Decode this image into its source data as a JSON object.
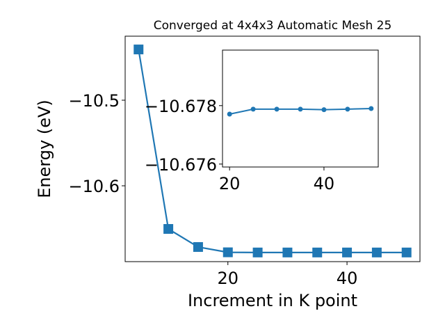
{
  "chart_data": [
    {
      "type": "line",
      "title": "Converged at 4x4x3 Automatic Mesh 25",
      "x_label": "Increment in K point",
      "y_label": "Energy (eV)",
      "x": [
        5,
        10,
        15,
        20,
        25,
        30,
        35,
        40,
        45,
        50
      ],
      "series": [
        {
          "color": "#1f77b4",
          "marker": "square",
          "values": [
            -10.4407,
            -10.6504,
            -10.6715,
            -10.6777,
            -10.6779,
            -10.6779,
            -10.6779,
            -10.6779,
            -10.6779,
            -10.6779
          ]
        }
      ],
      "xlim": [
        2.75,
        52.25
      ],
      "ylim": [
        -10.6886,
        -10.4252
      ],
      "xticks": [
        20,
        40
      ],
      "yticks": [
        {
          "value": -10.5,
          "label": "−10.5"
        },
        {
          "value": -10.6,
          "label": "−10.6"
        }
      ]
    },
    {
      "type": "line",
      "x": [
        20,
        25,
        30,
        35,
        40,
        45,
        50
      ],
      "series": [
        {
          "color": "#1f77b4",
          "marker": "circle",
          "values": [
            -10.67771,
            -10.67788,
            -10.67788,
            -10.67788,
            -10.67786,
            -10.67788,
            -10.6779
          ]
        }
      ],
      "xlim": [
        18.5,
        51.5
      ],
      "ylim": [
        -10.6759,
        -10.6799
      ],
      "xticks": [
        20,
        40
      ],
      "yticks": [
        {
          "value": -10.678,
          "label": "−10.678"
        },
        {
          "value": -10.676,
          "label": "−10.676"
        }
      ]
    }
  ]
}
